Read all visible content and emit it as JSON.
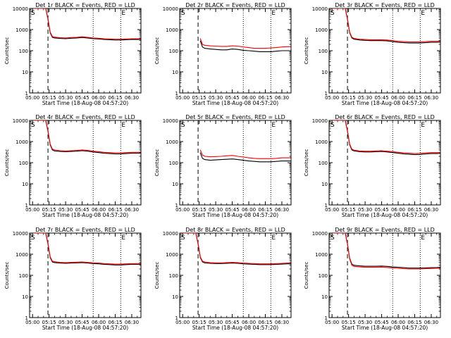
{
  "figure": {
    "xlabel_prefix": "Start Time (",
    "start_time": "18-Aug-08 04:57:20",
    "xlabel_suffix": ")",
    "ylabel": "Counts/sec",
    "x_ticks": [
      "05:00",
      "05:15",
      "05:30",
      "05:45",
      "06:00",
      "06:15",
      "06:30"
    ],
    "y_ticks": [
      "1",
      "10",
      "100",
      "1000",
      "10000"
    ],
    "colors": {
      "events": "#000000",
      "lld": "#ff0000",
      "background": "#ffffff"
    },
    "markers": {
      "left": "S",
      "right": "E"
    }
  },
  "chart_data": [
    {
      "type": "line",
      "title": "Det 1r BLACK = Events, RED = LLD",
      "x": [
        "05:00",
        "05:05",
        "05:10",
        "05:12",
        "05:14",
        "05:16",
        "05:18",
        "05:20",
        "05:25",
        "05:30",
        "05:35",
        "05:40",
        "05:45",
        "05:50",
        "05:55",
        "06:00",
        "06:05",
        "06:10",
        "06:15",
        "06:20",
        "06:25",
        "06:30",
        "06:35",
        "06:38"
      ],
      "xlim": [
        "04:57:20",
        "06:38:20"
      ],
      "ylim": [
        1,
        10000
      ],
      "yscale": "log",
      "series": [
        {
          "name": "Events",
          "values": [
            10000,
            10000,
            10000,
            10000,
            3000,
            700,
            430,
            400,
            380,
            370,
            390,
            400,
            420,
            400,
            370,
            360,
            340,
            330,
            320,
            320,
            330,
            340,
            340,
            345
          ]
        },
        {
          "name": "LLD",
          "values": [
            10000,
            10000,
            10000,
            10000,
            3200,
            760,
            470,
            440,
            410,
            400,
            420,
            430,
            460,
            430,
            400,
            390,
            370,
            360,
            350,
            350,
            360,
            370,
            370,
            375
          ]
        }
      ],
      "vlines": [
        {
          "x": "05:14",
          "style": "dashed"
        },
        {
          "x": "05:55",
          "style": "dotted"
        },
        {
          "x": "06:20",
          "style": "dotted"
        }
      ]
    },
    {
      "type": "line",
      "title": "Det 2r BLACK = Events, RED = LLD",
      "x": [
        "05:00",
        "05:05",
        "05:10",
        "05:12",
        "05:14",
        "05:16",
        "05:18",
        "05:20",
        "05:25",
        "05:30",
        "05:35",
        "05:40",
        "05:45",
        "05:50",
        "05:55",
        "06:00",
        "06:05",
        "06:10",
        "06:15",
        "06:20",
        "06:25",
        "06:30",
        "06:35",
        "06:38"
      ],
      "xlim": [
        "04:57:20",
        "06:38:20"
      ],
      "ylim": [
        1,
        10000
      ],
      "yscale": "log",
      "series": [
        {
          "name": "Events",
          "values": [
            null,
            null,
            null,
            null,
            null,
            300,
            150,
            130,
            120,
            115,
            110,
            110,
            120,
            115,
            105,
            100,
            95,
            90,
            90,
            90,
            95,
            100,
            100,
            100
          ]
        },
        {
          "name": "LLD",
          "values": [
            null,
            null,
            null,
            null,
            null,
            380,
            200,
            180,
            170,
            165,
            160,
            160,
            170,
            165,
            150,
            140,
            130,
            130,
            130,
            135,
            140,
            150,
            155,
            155
          ]
        }
      ],
      "vlines": [
        {
          "x": "05:14",
          "style": "dashed"
        },
        {
          "x": "05:55",
          "style": "dotted"
        },
        {
          "x": "06:20",
          "style": "dotted"
        }
      ]
    },
    {
      "type": "line",
      "title": "Det 3r BLACK = Events, RED = LLD",
      "x": [
        "05:00",
        "05:05",
        "05:10",
        "05:12",
        "05:14",
        "05:16",
        "05:18",
        "05:20",
        "05:25",
        "05:30",
        "05:35",
        "05:40",
        "05:45",
        "05:50",
        "05:55",
        "06:00",
        "06:05",
        "06:10",
        "06:15",
        "06:20",
        "06:25",
        "06:30",
        "06:35",
        "06:38"
      ],
      "xlim": [
        "04:57:20",
        "06:38:20"
      ],
      "ylim": [
        1,
        10000
      ],
      "yscale": "log",
      "series": [
        {
          "name": "Events",
          "values": [
            10000,
            10000,
            10000,
            10000,
            3000,
            700,
            400,
            350,
            320,
            310,
            300,
            300,
            300,
            290,
            270,
            250,
            240,
            230,
            230,
            230,
            240,
            250,
            250,
            255
          ]
        },
        {
          "name": "LLD",
          "values": [
            10000,
            10000,
            10000,
            10000,
            3200,
            760,
            440,
            380,
            350,
            340,
            330,
            330,
            330,
            320,
            300,
            280,
            270,
            260,
            260,
            260,
            270,
            280,
            280,
            285
          ]
        }
      ],
      "vlines": [
        {
          "x": "05:14",
          "style": "dashed"
        },
        {
          "x": "05:55",
          "style": "dotted"
        },
        {
          "x": "06:20",
          "style": "dotted"
        }
      ]
    },
    {
      "type": "line",
      "title": "Det 4r BLACK = Events, RED = LLD",
      "x": [
        "05:00",
        "05:05",
        "05:10",
        "05:12",
        "05:14",
        "05:16",
        "05:18",
        "05:20",
        "05:25",
        "05:30",
        "05:35",
        "05:40",
        "05:45",
        "05:50",
        "05:55",
        "06:00",
        "06:05",
        "06:10",
        "06:15",
        "06:20",
        "06:25",
        "06:30",
        "06:35",
        "06:38"
      ],
      "xlim": [
        "04:57:20",
        "06:38:20"
      ],
      "ylim": [
        1,
        10000
      ],
      "yscale": "log",
      "series": [
        {
          "name": "Events",
          "values": [
            10000,
            10000,
            10000,
            10000,
            3000,
            700,
            400,
            360,
            340,
            330,
            340,
            350,
            370,
            350,
            320,
            300,
            280,
            270,
            260,
            260,
            270,
            280,
            280,
            285
          ]
        },
        {
          "name": "LLD",
          "values": [
            10000,
            10000,
            10000,
            10000,
            3200,
            760,
            440,
            400,
            370,
            360,
            370,
            380,
            400,
            380,
            350,
            330,
            310,
            300,
            290,
            290,
            300,
            310,
            310,
            315
          ]
        }
      ],
      "vlines": [
        {
          "x": "05:14",
          "style": "dashed"
        },
        {
          "x": "05:55",
          "style": "dotted"
        },
        {
          "x": "06:20",
          "style": "dotted"
        }
      ]
    },
    {
      "type": "line",
      "title": "Det 5r BLACK = Events, RED = LLD",
      "x": [
        "05:00",
        "05:05",
        "05:10",
        "05:12",
        "05:14",
        "05:16",
        "05:18",
        "05:20",
        "05:25",
        "05:30",
        "05:35",
        "05:40",
        "05:45",
        "05:50",
        "05:55",
        "06:00",
        "06:05",
        "06:10",
        "06:15",
        "06:20",
        "06:25",
        "06:30",
        "06:35",
        "06:38"
      ],
      "xlim": [
        "04:57:20",
        "06:38:20"
      ],
      "ylim": [
        1,
        10000
      ],
      "yscale": "log",
      "series": [
        {
          "name": "Events",
          "values": [
            null,
            null,
            null,
            null,
            null,
            300,
            160,
            140,
            130,
            135,
            140,
            145,
            150,
            140,
            130,
            120,
            115,
            110,
            110,
            110,
            115,
            120,
            120,
            120
          ]
        },
        {
          "name": "LLD",
          "values": [
            null,
            null,
            null,
            null,
            null,
            400,
            230,
            200,
            190,
            195,
            200,
            210,
            220,
            200,
            185,
            170,
            160,
            155,
            155,
            155,
            160,
            170,
            170,
            170
          ]
        }
      ],
      "vlines": [
        {
          "x": "05:14",
          "style": "dashed"
        },
        {
          "x": "05:55",
          "style": "dotted"
        },
        {
          "x": "06:20",
          "style": "dotted"
        }
      ]
    },
    {
      "type": "line",
      "title": "Det 6r BLACK = Events, RED = LLD",
      "x": [
        "05:00",
        "05:05",
        "05:10",
        "05:12",
        "05:14",
        "05:16",
        "05:18",
        "05:20",
        "05:25",
        "05:30",
        "05:35",
        "05:40",
        "05:45",
        "05:50",
        "05:55",
        "06:00",
        "06:05",
        "06:10",
        "06:15",
        "06:20",
        "06:25",
        "06:30",
        "06:35",
        "06:38"
      ],
      "xlim": [
        "04:57:20",
        "06:38:20"
      ],
      "ylim": [
        1,
        10000
      ],
      "yscale": "log",
      "series": [
        {
          "name": "Events",
          "values": [
            10000,
            10000,
            10000,
            10000,
            3000,
            700,
            400,
            360,
            330,
            320,
            320,
            330,
            340,
            320,
            300,
            280,
            260,
            250,
            240,
            245,
            260,
            270,
            270,
            275
          ]
        },
        {
          "name": "LLD",
          "values": [
            10000,
            10000,
            10000,
            10000,
            3200,
            760,
            440,
            390,
            360,
            350,
            350,
            360,
            370,
            350,
            330,
            310,
            290,
            280,
            270,
            275,
            290,
            300,
            300,
            305
          ]
        }
      ],
      "vlines": [
        {
          "x": "05:14",
          "style": "dashed"
        },
        {
          "x": "05:55",
          "style": "dotted"
        },
        {
          "x": "06:20",
          "style": "dotted"
        }
      ]
    },
    {
      "type": "line",
      "title": "Det 7r BLACK = Events, RED = LLD",
      "x": [
        "05:00",
        "05:05",
        "05:10",
        "05:12",
        "05:14",
        "05:16",
        "05:18",
        "05:20",
        "05:25",
        "05:30",
        "05:35",
        "05:40",
        "05:45",
        "05:50",
        "05:55",
        "06:00",
        "06:05",
        "06:10",
        "06:15",
        "06:20",
        "06:25",
        "06:30",
        "06:35",
        "06:38"
      ],
      "xlim": [
        "04:57:20",
        "06:38:20"
      ],
      "ylim": [
        1,
        10000
      ],
      "yscale": "log",
      "series": [
        {
          "name": "Events",
          "values": [
            10000,
            10000,
            10000,
            10000,
            3000,
            700,
            430,
            400,
            380,
            370,
            380,
            390,
            400,
            380,
            360,
            350,
            330,
            320,
            310,
            310,
            320,
            330,
            330,
            335
          ]
        },
        {
          "name": "LLD",
          "values": [
            10000,
            10000,
            10000,
            10000,
            3200,
            760,
            470,
            440,
            410,
            400,
            410,
            420,
            430,
            410,
            390,
            380,
            360,
            350,
            340,
            340,
            350,
            360,
            360,
            365
          ]
        }
      ],
      "vlines": [
        {
          "x": "05:14",
          "style": "dashed"
        },
        {
          "x": "05:55",
          "style": "dotted"
        },
        {
          "x": "06:20",
          "style": "dotted"
        }
      ]
    },
    {
      "type": "line",
      "title": "Det 8r BLACK = Events, RED = LLD",
      "x": [
        "05:00",
        "05:05",
        "05:10",
        "05:12",
        "05:14",
        "05:16",
        "05:18",
        "05:20",
        "05:25",
        "05:30",
        "05:35",
        "05:40",
        "05:45",
        "05:50",
        "05:55",
        "06:00",
        "06:05",
        "06:10",
        "06:15",
        "06:20",
        "06:25",
        "06:30",
        "06:35",
        "06:38"
      ],
      "xlim": [
        "04:57:20",
        "06:38:20"
      ],
      "ylim": [
        1,
        10000
      ],
      "yscale": "log",
      "series": [
        {
          "name": "Events",
          "values": [
            10000,
            10000,
            10000,
            10000,
            3000,
            700,
            430,
            390,
            370,
            360,
            360,
            370,
            380,
            370,
            350,
            340,
            330,
            320,
            320,
            320,
            330,
            340,
            350,
            350
          ]
        },
        {
          "name": "LLD",
          "values": [
            10000,
            10000,
            10000,
            10000,
            3200,
            760,
            470,
            430,
            400,
            390,
            390,
            400,
            410,
            400,
            380,
            370,
            360,
            350,
            350,
            350,
            360,
            370,
            380,
            380
          ]
        }
      ],
      "vlines": [
        {
          "x": "05:14",
          "style": "dashed"
        },
        {
          "x": "05:55",
          "style": "dotted"
        },
        {
          "x": "06:20",
          "style": "dotted"
        }
      ]
    },
    {
      "type": "line",
      "title": "Det 9r BLACK = Events, RED = LLD",
      "x": [
        "05:00",
        "05:05",
        "05:10",
        "05:12",
        "05:14",
        "05:16",
        "05:18",
        "05:20",
        "05:25",
        "05:30",
        "05:35",
        "05:40",
        "05:45",
        "05:50",
        "05:55",
        "06:00",
        "06:05",
        "06:10",
        "06:15",
        "06:20",
        "06:25",
        "06:30",
        "06:35",
        "06:38"
      ],
      "xlim": [
        "04:57:20",
        "06:38:20"
      ],
      "ylim": [
        1,
        10000
      ],
      "yscale": "log",
      "series": [
        {
          "name": "Events",
          "values": [
            10000,
            10000,
            10000,
            10000,
            3000,
            650,
            340,
            300,
            280,
            270,
            270,
            270,
            275,
            265,
            250,
            240,
            230,
            220,
            220,
            220,
            225,
            230,
            235,
            240
          ]
        },
        {
          "name": "LLD",
          "values": [
            10000,
            10000,
            10000,
            10000,
            3000,
            600,
            300,
            265,
            250,
            240,
            240,
            240,
            245,
            235,
            225,
            215,
            205,
            200,
            200,
            200,
            205,
            210,
            215,
            220
          ]
        }
      ],
      "vlines": [
        {
          "x": "05:14",
          "style": "dashed"
        },
        {
          "x": "05:55",
          "style": "dotted"
        },
        {
          "x": "06:20",
          "style": "dotted"
        }
      ]
    }
  ]
}
